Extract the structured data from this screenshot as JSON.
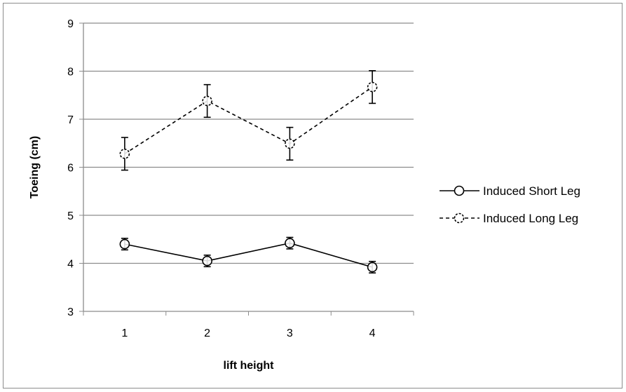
{
  "chart_data": {
    "type": "line",
    "title": "",
    "xlabel": "lift height",
    "ylabel": "Toeing (cm)",
    "categories": [
      "1",
      "2",
      "3",
      "4"
    ],
    "ylim": [
      3,
      9
    ],
    "yticks": [
      "3",
      "4",
      "5",
      "6",
      "7",
      "8",
      "9"
    ],
    "grid": true,
    "legend_position": "right",
    "series": [
      {
        "name": "Induced Short Leg",
        "values": [
          4.4,
          4.05,
          4.42,
          3.92
        ],
        "errors": [
          0.12,
          0.12,
          0.12,
          0.12
        ],
        "line_style": "solid",
        "color": "#000000"
      },
      {
        "name": "Induced Long Leg",
        "values": [
          6.28,
          7.38,
          6.49,
          7.67
        ],
        "errors": [
          0.34,
          0.34,
          0.34,
          0.34
        ],
        "line_style": "dashed",
        "color": "#000000"
      }
    ]
  }
}
